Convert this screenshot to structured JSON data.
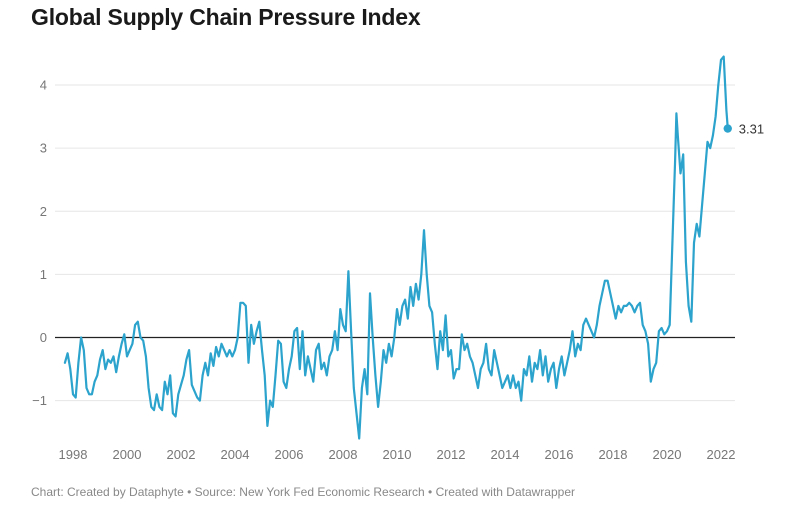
{
  "chart_data": {
    "type": "line",
    "title": "Global Supply Chain Pressure Index",
    "xlabel": "",
    "ylabel": "",
    "xlim": [
      1997.8,
      2022.5
    ],
    "ylim": [
      -1.6,
      4.6
    ],
    "y_ticks": [
      -1,
      0,
      1,
      2,
      3,
      4
    ],
    "y_tick_labels": [
      "−1",
      "0",
      "1",
      "2",
      "3",
      "4"
    ],
    "x_ticks": [
      1998,
      2000,
      2002,
      2004,
      2006,
      2008,
      2010,
      2012,
      2014,
      2016,
      2018,
      2020,
      2022
    ],
    "x_tick_labels": [
      "1998",
      "2000",
      "2002",
      "2004",
      "2006",
      "2008",
      "2010",
      "2012",
      "2014",
      "2016",
      "2018",
      "2020",
      "2022"
    ],
    "grid": true,
    "zero_line": true,
    "line_color": "#2ba3cc",
    "end_label": "3.31",
    "series": [
      {
        "name": "",
        "points": [
          [
            1997.7,
            -0.4
          ],
          [
            1997.8,
            -0.25
          ],
          [
            1997.9,
            -0.5
          ],
          [
            1998.0,
            -0.9
          ],
          [
            1998.1,
            -0.95
          ],
          [
            1998.2,
            -0.4
          ],
          [
            1998.3,
            0.0
          ],
          [
            1998.4,
            -0.2
          ],
          [
            1998.5,
            -0.8
          ],
          [
            1998.6,
            -0.9
          ],
          [
            1998.7,
            -0.9
          ],
          [
            1998.8,
            -0.7
          ],
          [
            1998.9,
            -0.6
          ],
          [
            1999.0,
            -0.35
          ],
          [
            1999.1,
            -0.2
          ],
          [
            1999.2,
            -0.5
          ],
          [
            1999.3,
            -0.35
          ],
          [
            1999.4,
            -0.4
          ],
          [
            1999.5,
            -0.3
          ],
          [
            1999.6,
            -0.55
          ],
          [
            1999.7,
            -0.3
          ],
          [
            1999.8,
            -0.1
          ],
          [
            1999.9,
            0.05
          ],
          [
            2000.0,
            -0.3
          ],
          [
            2000.1,
            -0.2
          ],
          [
            2000.2,
            -0.1
          ],
          [
            2000.3,
            0.2
          ],
          [
            2000.4,
            0.25
          ],
          [
            2000.5,
            0.0
          ],
          [
            2000.6,
            -0.05
          ],
          [
            2000.7,
            -0.3
          ],
          [
            2000.8,
            -0.8
          ],
          [
            2000.9,
            -1.1
          ],
          [
            2001.0,
            -1.15
          ],
          [
            2001.1,
            -0.9
          ],
          [
            2001.2,
            -1.1
          ],
          [
            2001.3,
            -1.15
          ],
          [
            2001.4,
            -0.7
          ],
          [
            2001.5,
            -0.9
          ],
          [
            2001.6,
            -0.6
          ],
          [
            2001.7,
            -1.2
          ],
          [
            2001.8,
            -1.25
          ],
          [
            2001.9,
            -0.9
          ],
          [
            2002.0,
            -0.75
          ],
          [
            2002.1,
            -0.6
          ],
          [
            2002.2,
            -0.35
          ],
          [
            2002.3,
            -0.2
          ],
          [
            2002.4,
            -0.75
          ],
          [
            2002.5,
            -0.85
          ],
          [
            2002.6,
            -0.95
          ],
          [
            2002.7,
            -1.0
          ],
          [
            2002.8,
            -0.6
          ],
          [
            2002.9,
            -0.4
          ],
          [
            2003.0,
            -0.6
          ],
          [
            2003.1,
            -0.25
          ],
          [
            2003.2,
            -0.45
          ],
          [
            2003.3,
            -0.15
          ],
          [
            2003.4,
            -0.3
          ],
          [
            2003.5,
            -0.1
          ],
          [
            2003.6,
            -0.2
          ],
          [
            2003.7,
            -0.3
          ],
          [
            2003.8,
            -0.2
          ],
          [
            2003.9,
            -0.3
          ],
          [
            2004.0,
            -0.2
          ],
          [
            2004.1,
            0.0
          ],
          [
            2004.2,
            0.55
          ],
          [
            2004.3,
            0.55
          ],
          [
            2004.4,
            0.5
          ],
          [
            2004.5,
            -0.4
          ],
          [
            2004.6,
            0.2
          ],
          [
            2004.7,
            -0.1
          ],
          [
            2004.8,
            0.1
          ],
          [
            2004.9,
            0.25
          ],
          [
            2005.0,
            -0.2
          ],
          [
            2005.1,
            -0.6
          ],
          [
            2005.2,
            -1.4
          ],
          [
            2005.3,
            -1.0
          ],
          [
            2005.4,
            -1.1
          ],
          [
            2005.5,
            -0.6
          ],
          [
            2005.6,
            -0.05
          ],
          [
            2005.7,
            -0.1
          ],
          [
            2005.8,
            -0.7
          ],
          [
            2005.9,
            -0.8
          ],
          [
            2006.0,
            -0.5
          ],
          [
            2006.1,
            -0.3
          ],
          [
            2006.2,
            0.1
          ],
          [
            2006.3,
            0.15
          ],
          [
            2006.4,
            -0.5
          ],
          [
            2006.5,
            0.1
          ],
          [
            2006.6,
            -0.6
          ],
          [
            2006.7,
            -0.3
          ],
          [
            2006.8,
            -0.5
          ],
          [
            2006.9,
            -0.7
          ],
          [
            2007.0,
            -0.2
          ],
          [
            2007.1,
            -0.1
          ],
          [
            2007.2,
            -0.5
          ],
          [
            2007.3,
            -0.4
          ],
          [
            2007.4,
            -0.6
          ],
          [
            2007.5,
            -0.3
          ],
          [
            2007.6,
            -0.2
          ],
          [
            2007.7,
            0.1
          ],
          [
            2007.8,
            -0.2
          ],
          [
            2007.9,
            0.45
          ],
          [
            2008.0,
            0.2
          ],
          [
            2008.1,
            0.1
          ],
          [
            2008.2,
            1.05
          ],
          [
            2008.3,
            0.1
          ],
          [
            2008.4,
            -0.8
          ],
          [
            2008.5,
            -1.2
          ],
          [
            2008.6,
            -1.6
          ],
          [
            2008.7,
            -0.8
          ],
          [
            2008.8,
            -0.5
          ],
          [
            2008.9,
            -0.9
          ],
          [
            2009.0,
            0.7
          ],
          [
            2009.1,
            0.0
          ],
          [
            2009.2,
            -0.6
          ],
          [
            2009.3,
            -1.1
          ],
          [
            2009.4,
            -0.7
          ],
          [
            2009.5,
            -0.2
          ],
          [
            2009.6,
            -0.4
          ],
          [
            2009.7,
            -0.1
          ],
          [
            2009.8,
            -0.3
          ],
          [
            2009.9,
            0.0
          ],
          [
            2010.0,
            0.45
          ],
          [
            2010.1,
            0.2
          ],
          [
            2010.2,
            0.5
          ],
          [
            2010.3,
            0.6
          ],
          [
            2010.4,
            0.3
          ],
          [
            2010.5,
            0.8
          ],
          [
            2010.6,
            0.5
          ],
          [
            2010.7,
            0.85
          ],
          [
            2010.8,
            0.6
          ],
          [
            2010.9,
            1.0
          ],
          [
            2011.0,
            1.7
          ],
          [
            2011.1,
            1.0
          ],
          [
            2011.2,
            0.5
          ],
          [
            2011.3,
            0.4
          ],
          [
            2011.4,
            -0.1
          ],
          [
            2011.5,
            -0.5
          ],
          [
            2011.6,
            0.1
          ],
          [
            2011.7,
            -0.2
          ],
          [
            2011.8,
            0.35
          ],
          [
            2011.9,
            -0.3
          ],
          [
            2012.0,
            -0.2
          ],
          [
            2012.1,
            -0.65
          ],
          [
            2012.2,
            -0.5
          ],
          [
            2012.3,
            -0.5
          ],
          [
            2012.4,
            0.05
          ],
          [
            2012.5,
            -0.2
          ],
          [
            2012.6,
            -0.1
          ],
          [
            2012.7,
            -0.3
          ],
          [
            2012.8,
            -0.4
          ],
          [
            2012.9,
            -0.6
          ],
          [
            2013.0,
            -0.8
          ],
          [
            2013.1,
            -0.5
          ],
          [
            2013.2,
            -0.4
          ],
          [
            2013.3,
            -0.1
          ],
          [
            2013.4,
            -0.5
          ],
          [
            2013.5,
            -0.6
          ],
          [
            2013.6,
            -0.2
          ],
          [
            2013.7,
            -0.4
          ],
          [
            2013.8,
            -0.6
          ],
          [
            2013.9,
            -0.8
          ],
          [
            2014.0,
            -0.7
          ],
          [
            2014.1,
            -0.6
          ],
          [
            2014.2,
            -0.8
          ],
          [
            2014.3,
            -0.6
          ],
          [
            2014.4,
            -0.8
          ],
          [
            2014.5,
            -0.7
          ],
          [
            2014.6,
            -1.0
          ],
          [
            2014.7,
            -0.5
          ],
          [
            2014.8,
            -0.6
          ],
          [
            2014.9,
            -0.3
          ],
          [
            2015.0,
            -0.7
          ],
          [
            2015.1,
            -0.4
          ],
          [
            2015.2,
            -0.5
          ],
          [
            2015.3,
            -0.2
          ],
          [
            2015.4,
            -0.6
          ],
          [
            2015.5,
            -0.3
          ],
          [
            2015.6,
            -0.7
          ],
          [
            2015.7,
            -0.5
          ],
          [
            2015.8,
            -0.4
          ],
          [
            2015.9,
            -0.8
          ],
          [
            2016.0,
            -0.5
          ],
          [
            2016.1,
            -0.3
          ],
          [
            2016.2,
            -0.6
          ],
          [
            2016.3,
            -0.4
          ],
          [
            2016.4,
            -0.2
          ],
          [
            2016.5,
            0.1
          ],
          [
            2016.6,
            -0.3
          ],
          [
            2016.7,
            -0.1
          ],
          [
            2016.8,
            -0.2
          ],
          [
            2016.9,
            0.2
          ],
          [
            2017.0,
            0.3
          ],
          [
            2017.1,
            0.2
          ],
          [
            2017.2,
            0.1
          ],
          [
            2017.3,
            0.0
          ],
          [
            2017.4,
            0.2
          ],
          [
            2017.5,
            0.5
          ],
          [
            2017.6,
            0.7
          ],
          [
            2017.7,
            0.9
          ],
          [
            2017.8,
            0.9
          ],
          [
            2017.9,
            0.7
          ],
          [
            2018.0,
            0.5
          ],
          [
            2018.1,
            0.3
          ],
          [
            2018.2,
            0.5
          ],
          [
            2018.3,
            0.4
          ],
          [
            2018.4,
            0.5
          ],
          [
            2018.5,
            0.5
          ],
          [
            2018.6,
            0.55
          ],
          [
            2018.7,
            0.5
          ],
          [
            2018.8,
            0.4
          ],
          [
            2018.9,
            0.5
          ],
          [
            2019.0,
            0.55
          ],
          [
            2019.1,
            0.2
          ],
          [
            2019.2,
            0.1
          ],
          [
            2019.3,
            -0.1
          ],
          [
            2019.4,
            -0.7
          ],
          [
            2019.5,
            -0.5
          ],
          [
            2019.6,
            -0.4
          ],
          [
            2019.7,
            0.1
          ],
          [
            2019.8,
            0.15
          ],
          [
            2019.9,
            0.05
          ],
          [
            2020.0,
            0.1
          ],
          [
            2020.1,
            0.2
          ],
          [
            2020.2,
            1.5
          ],
          [
            2020.3,
            2.8
          ],
          [
            2020.35,
            3.55
          ],
          [
            2020.4,
            3.2
          ],
          [
            2020.5,
            2.6
          ],
          [
            2020.6,
            2.9
          ],
          [
            2020.7,
            1.2
          ],
          [
            2020.8,
            0.5
          ],
          [
            2020.9,
            0.25
          ],
          [
            2021.0,
            1.5
          ],
          [
            2021.1,
            1.8
          ],
          [
            2021.2,
            1.6
          ],
          [
            2021.3,
            2.1
          ],
          [
            2021.4,
            2.6
          ],
          [
            2021.5,
            3.1
          ],
          [
            2021.6,
            3.0
          ],
          [
            2021.7,
            3.2
          ],
          [
            2021.8,
            3.5
          ],
          [
            2021.9,
            4.0
          ],
          [
            2022.0,
            4.4
          ],
          [
            2022.1,
            4.45
          ],
          [
            2022.2,
            3.6
          ],
          [
            2022.25,
            3.31
          ]
        ]
      }
    ]
  },
  "footer": "Chart: Created by Dataphyte • Source: New York Fed Economic Research • Created with Datawrapper"
}
